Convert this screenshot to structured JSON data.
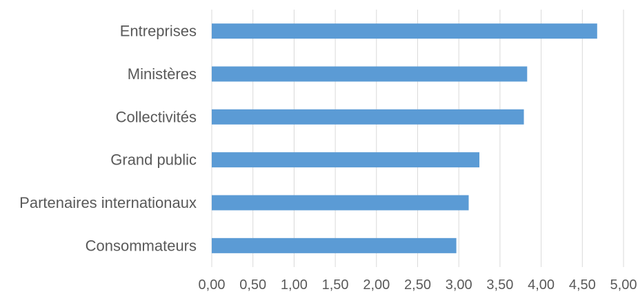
{
  "chart_data": {
    "type": "bar",
    "orientation": "horizontal",
    "categories": [
      "Entreprises",
      "Ministères",
      "Collectivités",
      "Grand public",
      "Partenaires internationaux",
      "Consommateurs"
    ],
    "values": [
      4.68,
      3.83,
      3.79,
      3.25,
      3.12,
      2.97
    ],
    "title": "",
    "xlabel": "",
    "ylabel": "",
    "xlim": [
      0,
      5
    ],
    "x_ticks": [
      "0,00",
      "0,50",
      "1,00",
      "1,50",
      "2,00",
      "2,50",
      "3,00",
      "3,50",
      "4,00",
      "4,50",
      "5,00"
    ],
    "grid": "vertical",
    "legend": "none",
    "bar_color": "#5B9BD5",
    "grid_color": "#D9D9D9"
  }
}
